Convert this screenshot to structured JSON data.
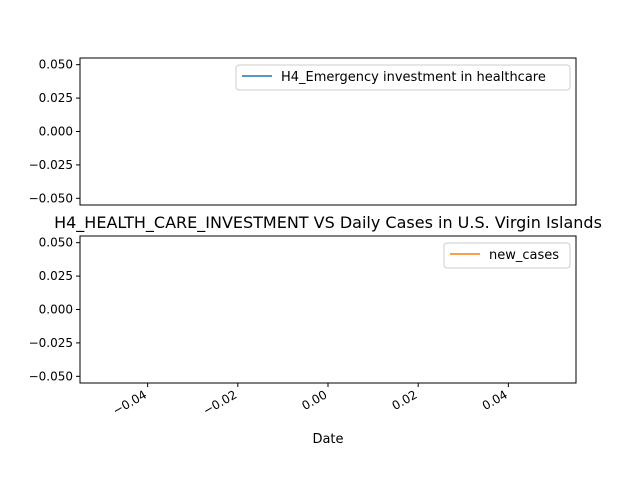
{
  "chart_data": [
    {
      "type": "line",
      "title": "",
      "xlabel": "",
      "ylabel": "",
      "x": [],
      "series": [
        {
          "name": "H4_Emergency investment in healthcare",
          "values": [],
          "color": "#1f77b4"
        }
      ],
      "ylim": [
        -0.055,
        0.055
      ],
      "yticks": [
        0.05,
        0.025,
        0.0,
        -0.025,
        -0.05
      ],
      "ytick_labels": [
        "0.050",
        "0.025",
        "0.000",
        "−0.025",
        "−0.050"
      ],
      "legend": "top-right",
      "grid": false
    },
    {
      "type": "line",
      "title": "H4_HEALTH_CARE_INVESTMENT VS Daily Cases in U.S. Virgin Islands",
      "xlabel": "Date",
      "ylabel": "",
      "x": [],
      "series": [
        {
          "name": "new_cases",
          "values": [],
          "color": "#ff7f0e"
        }
      ],
      "xlim": [
        -0.055,
        0.055
      ],
      "xticks": [
        -0.04,
        -0.02,
        0.0,
        0.02,
        0.04
      ],
      "xtick_labels": [
        "−0.04",
        "−0.02",
        "0.00",
        "0.02",
        "0.04"
      ],
      "ylim": [
        -0.055,
        0.055
      ],
      "yticks": [
        0.05,
        0.025,
        0.0,
        -0.025,
        -0.05
      ],
      "ytick_labels": [
        "0.050",
        "0.025",
        "0.000",
        "−0.025",
        "−0.050"
      ],
      "legend": "top-right",
      "grid": false
    }
  ]
}
